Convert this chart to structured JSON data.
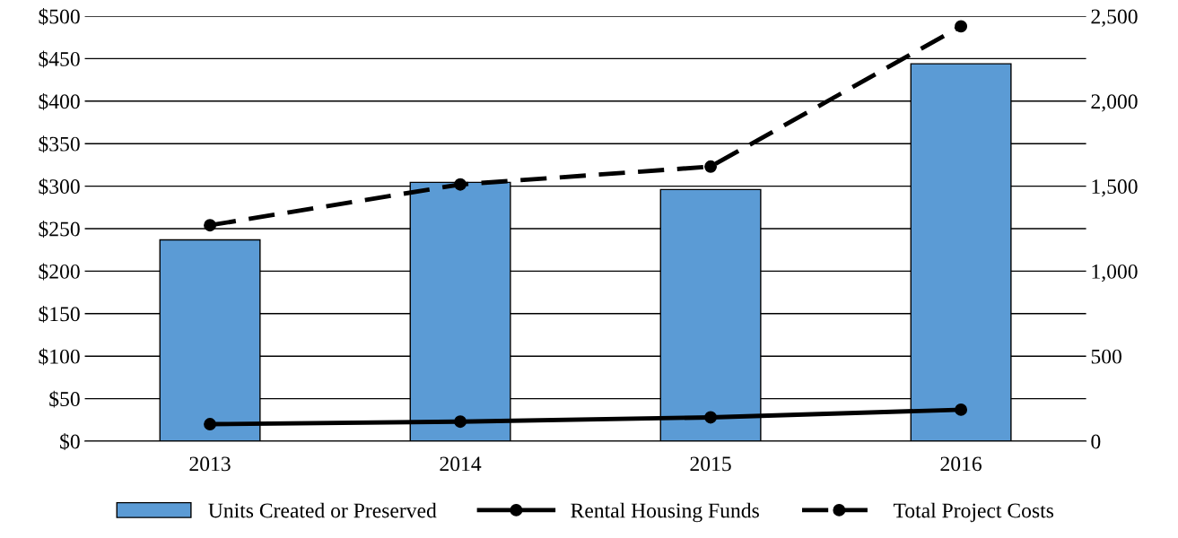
{
  "chart_data": {
    "type": "bar",
    "categories": [
      "2013",
      "2014",
      "2015",
      "2016"
    ],
    "series": [
      {
        "name": "Units Created or Preserved",
        "axis": "y2",
        "color": "#5b9bd5",
        "values": [
          1184,
          1522,
          1480,
          2220
        ]
      },
      {
        "name": "Rental Housing Funds",
        "type": "line",
        "color": "#000000",
        "line_style": "solid",
        "marker": "circle",
        "values": [
          20,
          23,
          28,
          37
        ]
      },
      {
        "name": "Total Project Costs",
        "type": "line",
        "color": "#000000",
        "line_style": "dashed",
        "marker": "circle",
        "values": [
          254,
          302,
          323,
          488
        ]
      }
    ],
    "ylim": [
      0,
      500
    ],
    "yticks": [
      {
        "value": 0,
        "label": "$0"
      },
      {
        "value": 50,
        "label": "$50"
      },
      {
        "value": 100,
        "label": "$100"
      },
      {
        "value": 150,
        "label": "$150"
      },
      {
        "value": 200,
        "label": "$200"
      },
      {
        "value": 250,
        "label": "$250"
      },
      {
        "value": 300,
        "label": "$300"
      },
      {
        "value": 350,
        "label": "$350"
      },
      {
        "value": 400,
        "label": "$400"
      },
      {
        "value": 450,
        "label": "$450"
      },
      {
        "value": 500,
        "label": "$500"
      }
    ],
    "y2lim": [
      0,
      2500
    ],
    "y2ticks": [
      0,
      {
        "value": 500,
        "label": "500"
      },
      {
        "value": 1000,
        "label": "1,000"
      },
      {
        "value": 1500,
        "label": "1,500"
      },
      {
        "value": 2000,
        "label": "2,000"
      },
      {
        "value": 2500,
        "label": "2,500"
      }
    ],
    "grid": "y",
    "legend": "bottom"
  }
}
